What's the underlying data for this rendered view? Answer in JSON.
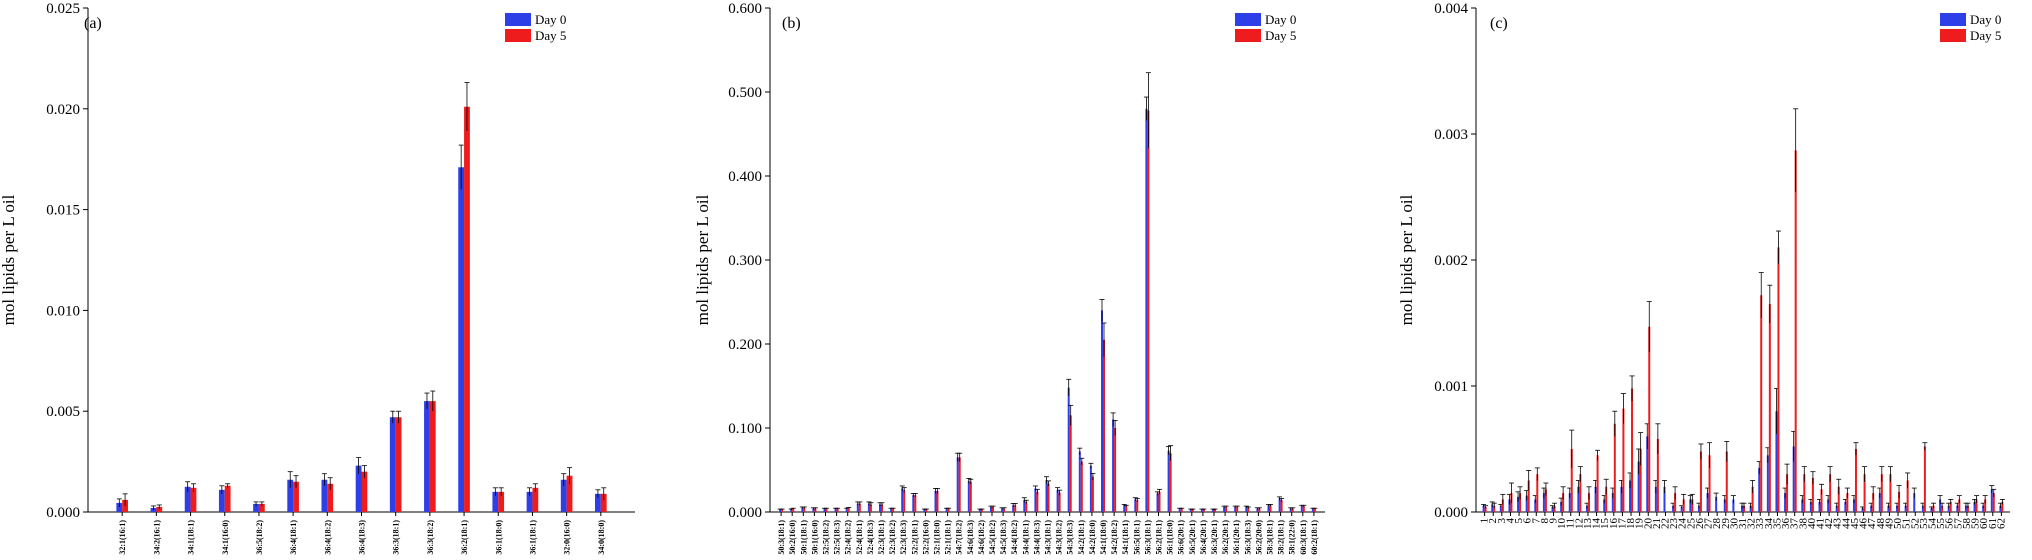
{
  "colors": {
    "day0": "#2f3fe8",
    "day5": "#ee1c1c",
    "error": "#000000"
  },
  "chart_data": [
    {
      "type": "bar",
      "panel_label": "(a)",
      "ylabel": "mol lipids per L oil",
      "ylim": [
        0,
        0.025
      ],
      "yticks": [
        "0.000",
        "0.005",
        "0.010",
        "0.015",
        "0.020",
        "0.025"
      ],
      "ytick_values": [
        0,
        0.005,
        0.01,
        0.015,
        0.02,
        0.025
      ],
      "legend": [
        "Day 0",
        "Day 5"
      ],
      "legend_position": "top-right",
      "categories": [
        "32:1(16:1)",
        "34:2(16:1)",
        "34:1(18:1)",
        "34:1(16:0)",
        "36:5(18:2)",
        "36:4(18:1)",
        "36:4(18:2)",
        "36:4(18:3)",
        "36:3(18:1)",
        "36:3(18:2)",
        "36:2(18:1)",
        "36:1(18:0)",
        "36:1(18:1)",
        "32:0(16:0)",
        "34:0(18:0)"
      ],
      "series": [
        {
          "name": "Day 0",
          "values": [
            0.00045,
            0.0002,
            0.00125,
            0.0011,
            0.0004,
            0.0016,
            0.0016,
            0.0023,
            0.0047,
            0.0055,
            0.0171,
            0.001,
            0.001,
            0.0016,
            0.0009
          ],
          "errors": [
            0.0002,
            0.0001,
            0.00025,
            0.0002,
            0.0001,
            0.0004,
            0.0003,
            0.0004,
            0.0003,
            0.0004,
            0.0011,
            0.0002,
            0.0002,
            0.0003,
            0.0002
          ]
        },
        {
          "name": "Day 5",
          "values": [
            0.0006,
            0.00025,
            0.0012,
            0.0013,
            0.0004,
            0.0015,
            0.0014,
            0.002,
            0.0047,
            0.0055,
            0.0201,
            0.001,
            0.0012,
            0.0018,
            0.0009
          ],
          "errors": [
            0.0003,
            0.0001,
            0.0002,
            0.0001,
            0.0001,
            0.0003,
            0.0003,
            0.0003,
            0.0003,
            0.0005,
            0.0012,
            0.0002,
            0.0002,
            0.0004,
            0.0003
          ]
        }
      ]
    },
    {
      "type": "bar",
      "panel_label": "(b)",
      "ylabel": "mol lipids per L oil",
      "ylim": [
        0,
        0.6
      ],
      "yticks": [
        "0.000",
        "0.100",
        "0.200",
        "0.300",
        "0.400",
        "0.500",
        "0.600"
      ],
      "ytick_values": [
        0,
        0.1,
        0.2,
        0.3,
        0.4,
        0.5,
        0.6
      ],
      "legend": [
        "Day 0",
        "Day 5"
      ],
      "legend_position": "top-right",
      "categories": [
        "50:3(18:1)",
        "50:2(16:0)",
        "50:1(18:1)",
        "50:1(16:0)",
        "52:5(18:2)",
        "52:5(18:3)",
        "52:4(18:2)",
        "52:4(18:1)",
        "52:4(18:3)",
        "52:3(18:1)",
        "52:3(18:2)",
        "52:3(18:3)",
        "52:2(18:1)",
        "52:2(16:0)",
        "52:1(18:0)",
        "52:1(18:1)",
        "54:7(18:2)",
        "54:6(18:3)",
        "54:6(18:2)",
        "54:5(18:2)",
        "54:5(18:3)",
        "54:4(18:2)",
        "54:4(18:1)",
        "54:4(18:3)",
        "54:3(18:1)",
        "54:3(18:2)",
        "54:3(18:3)",
        "54:2(18:1)",
        "54:2(18:0)",
        "54:1(18:0)",
        "54:2(18:2)",
        "54:1(18:1)",
        "56:5(18:1)",
        "56:3(18:1)",
        "56:2(18:1)",
        "56:1(18:0)",
        "56:6(20:1)",
        "56:5(20:1)",
        "56:4(20:1)",
        "56:3(20:1)",
        "56:2(20:1)",
        "56:1(20:1)",
        "56:3(18:3)",
        "56:2(20:0)",
        "58:3(18:1)",
        "58:2(18:1)",
        "58:1(22:0)",
        "60:3(18:1)",
        "60:2(18:1)"
      ],
      "series": [
        {
          "name": "Day 0",
          "values": [
            0.003,
            0.003,
            0.005,
            0.004,
            0.004,
            0.004,
            0.004,
            0.01,
            0.01,
            0.009,
            0.004,
            0.028,
            0.02,
            0.003,
            0.025,
            0.004,
            0.065,
            0.037,
            0.003,
            0.006,
            0.004,
            0.008,
            0.014,
            0.028,
            0.038,
            0.026,
            0.148,
            0.072,
            0.055,
            0.24,
            0.11,
            0.008,
            0.015,
            0.48,
            0.022,
            0.073,
            0.004,
            0.003,
            0.003,
            0.003,
            0.006,
            0.006,
            0.006,
            0.004,
            0.008,
            0.016,
            0.004,
            0.007,
            0.004
          ],
          "errors": [
            0.0005,
            0.0005,
            0.001,
            0.001,
            0.0005,
            0.0005,
            0.0005,
            0.002,
            0.002,
            0.002,
            0.0005,
            0.003,
            0.002,
            0.0005,
            0.003,
            0.0005,
            0.005,
            0.003,
            0.0005,
            0.001,
            0.001,
            0.002,
            0.003,
            0.003,
            0.004,
            0.003,
            0.01,
            0.004,
            0.003,
            0.013,
            0.008,
            0.001,
            0.002,
            0.014,
            0.002,
            0.005,
            0.0005,
            0.0005,
            0.0005,
            0.0005,
            0.001,
            0.001,
            0.001,
            0.001,
            0.001,
            0.002,
            0.001,
            0.001,
            0.0005
          ]
        },
        {
          "name": "Day 5",
          "values": [
            0.003,
            0.004,
            0.005,
            0.004,
            0.004,
            0.004,
            0.005,
            0.01,
            0.009,
            0.009,
            0.004,
            0.026,
            0.02,
            0.003,
            0.025,
            0.004,
            0.065,
            0.036,
            0.003,
            0.006,
            0.004,
            0.008,
            0.012,
            0.024,
            0.034,
            0.023,
            0.115,
            0.06,
            0.042,
            0.205,
            0.1,
            0.007,
            0.014,
            0.478,
            0.024,
            0.07,
            0.004,
            0.003,
            0.003,
            0.003,
            0.006,
            0.006,
            0.005,
            0.004,
            0.008,
            0.014,
            0.004,
            0.007,
            0.004
          ],
          "errors": [
            0.0005,
            0.0005,
            0.001,
            0.001,
            0.0005,
            0.0005,
            0.0005,
            0.002,
            0.002,
            0.002,
            0.0005,
            0.003,
            0.002,
            0.0005,
            0.003,
            0.0005,
            0.005,
            0.003,
            0.0005,
            0.001,
            0.001,
            0.002,
            0.002,
            0.003,
            0.003,
            0.003,
            0.012,
            0.004,
            0.004,
            0.02,
            0.009,
            0.001,
            0.002,
            0.045,
            0.003,
            0.009,
            0.0005,
            0.0005,
            0.0005,
            0.0005,
            0.001,
            0.001,
            0.001,
            0.001,
            0.001,
            0.002,
            0.001,
            0.001,
            0.0005
          ]
        }
      ]
    },
    {
      "type": "bar",
      "panel_label": "(c)",
      "ylabel": "mol lipids per L oil",
      "ylim": [
        0,
        0.004
      ],
      "yticks": [
        "0.000",
        "0.001",
        "0.002",
        "0.003",
        "0.004"
      ],
      "ytick_values": [
        0,
        0.001,
        0.002,
        0.003,
        0.004
      ],
      "legend": [
        "Day 0",
        "Day 5"
      ],
      "legend_position": "top-right",
      "categories": [
        "1",
        "2",
        "3",
        "4",
        "5",
        "6",
        "7",
        "8",
        "9",
        "10",
        "11",
        "12",
        "13",
        "14",
        "15",
        "16",
        "17",
        "18",
        "19",
        "20",
        "21",
        "22",
        "23",
        "24",
        "25",
        "26",
        "27",
        "28",
        "29",
        "30",
        "31",
        "32",
        "33",
        "34",
        "35",
        "36",
        "37",
        "38",
        "40",
        "41",
        "42",
        "43",
        "44",
        "45",
        "46",
        "47",
        "48",
        "49",
        "50",
        "51",
        "52",
        "53",
        "54",
        "55",
        "56",
        "57",
        "58",
        "59",
        "60",
        "61",
        "62"
      ],
      "series": [
        {
          "name": "Day 0",
          "values": [
            5e-05,
            6e-05,
            5e-05,
            0.0001,
            0.00012,
            0.00013,
            0.0001,
            0.00015,
            4e-05,
            8e-05,
            0.00015,
            0.0002,
            5e-05,
            0.0002,
            0.0001,
            0.00015,
            0.0002,
            0.00025,
            0.0004,
            0.0006,
            0.0002,
            0.0002,
            5e-05,
            4e-05,
            0.0001,
            5e-05,
            0.00015,
            0.00012,
            0.0001,
            0.0001,
            5e-05,
            5e-05,
            0.00035,
            0.00045,
            0.0008,
            0.00015,
            0.00052,
            0.0001,
            8e-05,
            8e-05,
            0.0001,
            5e-05,
            8e-05,
            0.0001,
            3e-05,
            5e-05,
            0.00015,
            5e-05,
            5e-05,
            5e-05,
            0.00015,
            5e-05,
            3e-05,
            0.0001,
            5e-05,
            5e-05,
            5e-05,
            8e-05,
            5e-05,
            0.00018,
            5e-05
          ],
          "errors": [
            1e-05,
            2e-05,
            1e-05,
            4e-05,
            4e-05,
            4e-05,
            3e-05,
            4e-05,
            1e-05,
            3e-05,
            4e-05,
            5e-05,
            2e-05,
            5e-05,
            3e-05,
            4e-05,
            5e-05,
            6e-05,
            0.0001,
            0.0001,
            5e-05,
            5e-05,
            2e-05,
            1e-05,
            3e-05,
            2e-05,
            4e-05,
            3e-05,
            3e-05,
            3e-05,
            2e-05,
            2e-05,
            5e-05,
            6e-05,
            0.00018,
            4e-05,
            0.00012,
            3e-05,
            2e-05,
            2e-05,
            3e-05,
            2e-05,
            2e-05,
            3e-05,
            1e-05,
            2e-05,
            4e-05,
            2e-05,
            2e-05,
            2e-05,
            4e-05,
            2e-05,
            1e-05,
            3e-05,
            2e-05,
            2e-05,
            2e-05,
            2e-05,
            2e-05,
            3e-05,
            2e-05
          ]
        },
        {
          "name": "Day 5",
          "values": [
            4e-05,
            5e-05,
            0.0001,
            0.00015,
            0.00015,
            0.00025,
            0.0003,
            0.00018,
            5e-05,
            0.00015,
            0.0005,
            0.0003,
            0.00015,
            0.00045,
            0.0002,
            0.0007,
            0.00082,
            0.00098,
            0.0005,
            0.00147,
            0.00058,
            0.0,
            0.00015,
            0.0001,
            0.0001,
            0.00048,
            0.00045,
            0.0,
            0.00048,
            0.0,
            5e-05,
            0.0002,
            0.00172,
            0.00165,
            0.0021,
            0.0003,
            0.00287,
            0.0003,
            0.00027,
            0.00018,
            0.0003,
            0.0002,
            0.00015,
            0.0005,
            0.0003,
            0.00015,
            0.0003,
            0.0003,
            0.00016,
            0.00025,
            0.0,
            0.00052,
            5e-05,
            5e-05,
            8e-05,
            0.0001,
            5e-05,
            0.0001,
            0.0001,
            0.00015,
            8e-05
          ],
          "errors": [
            1e-05,
            2e-05,
            4e-05,
            8e-05,
            5e-05,
            8e-05,
            5e-05,
            5e-05,
            2e-05,
            5e-05,
            0.00015,
            6e-05,
            5e-05,
            4e-05,
            6e-05,
            0.0001,
            0.00012,
            0.0001,
            0.00013,
            0.0002,
            0.00012,
            0.0,
            5e-05,
            4e-05,
            4e-05,
            6e-05,
            0.0001,
            0.0,
            8e-05,
            0.0,
            2e-05,
            5e-05,
            0.00018,
            0.00015,
            0.00013,
            8e-05,
            0.00033,
            6e-05,
            5e-05,
            4e-05,
            6e-05,
            6e-05,
            4e-05,
            5e-05,
            6e-05,
            5e-05,
            6e-05,
            6e-05,
            5e-05,
            6e-05,
            0.0,
            3e-05,
            2e-05,
            2e-05,
            2e-05,
            3e-05,
            2e-05,
            3e-05,
            3e-05,
            3e-05,
            2e-05
          ]
        }
      ]
    }
  ]
}
